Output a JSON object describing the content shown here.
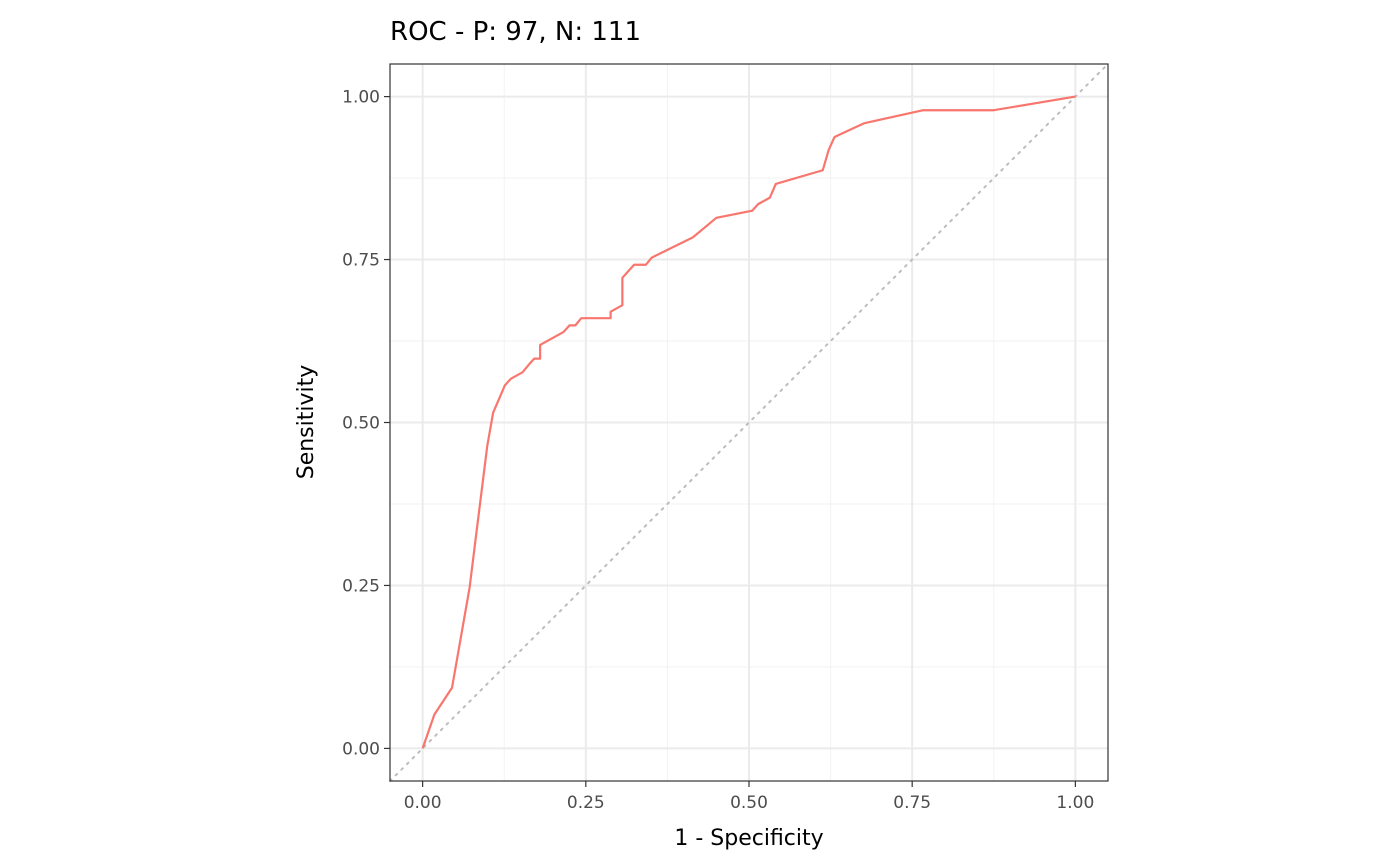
{
  "chart_data": {
    "type": "line",
    "title": "ROC - P: 97, N: 111",
    "xlabel": "1 - Specificity",
    "ylabel": "Sensitivity",
    "xlim": [
      -0.05,
      1.05
    ],
    "ylim": [
      -0.05,
      1.05
    ],
    "x_ticks": [
      0.0,
      0.25,
      0.5,
      0.75,
      1.0
    ],
    "y_ticks": [
      0.0,
      0.25,
      0.5,
      0.75,
      1.0
    ],
    "x_tick_labels": [
      "0.00",
      "0.25",
      "0.50",
      "0.75",
      "1.00"
    ],
    "y_tick_labels": [
      "0.00",
      "0.25",
      "0.50",
      "0.75",
      "1.00"
    ],
    "grid": true,
    "diagonal_reference": {
      "x": [
        -0.05,
        1.05
      ],
      "y": [
        -0.05,
        1.05
      ],
      "color": "#bdbdbd",
      "style": "dotted"
    },
    "series": [
      {
        "color": "#F8766D",
        "x": [
          0.0,
          0.018,
          0.045,
          0.072,
          0.081,
          0.09,
          0.099,
          0.108,
          0.117,
          0.126,
          0.135,
          0.144,
          0.153,
          0.162,
          0.171,
          0.171,
          0.18,
          0.18,
          0.189,
          0.198,
          0.207,
          0.216,
          0.225,
          0.234,
          0.243,
          0.252,
          0.261,
          0.27,
          0.279,
          0.288,
          0.288,
          0.297,
          0.306,
          0.306,
          0.315,
          0.324,
          0.333,
          0.342,
          0.351,
          0.414,
          0.45,
          0.505,
          0.514,
          0.532,
          0.541,
          0.613,
          0.622,
          0.631,
          0.676,
          0.766,
          0.874,
          1.0
        ],
        "y": [
          0.0,
          0.052,
          0.093,
          0.247,
          0.32,
          0.392,
          0.464,
          0.515,
          0.536,
          0.557,
          0.567,
          0.572,
          0.577,
          0.588,
          0.598,
          0.598,
          0.598,
          0.619,
          0.624,
          0.629,
          0.634,
          0.639,
          0.649,
          0.649,
          0.66,
          0.66,
          0.66,
          0.66,
          0.66,
          0.66,
          0.67,
          0.675,
          0.68,
          0.722,
          0.732,
          0.742,
          0.742,
          0.742,
          0.753,
          0.784,
          0.814,
          0.825,
          0.835,
          0.845,
          0.866,
          0.887,
          0.918,
          0.938,
          0.959,
          0.979,
          0.979,
          1.0
        ]
      }
    ]
  }
}
